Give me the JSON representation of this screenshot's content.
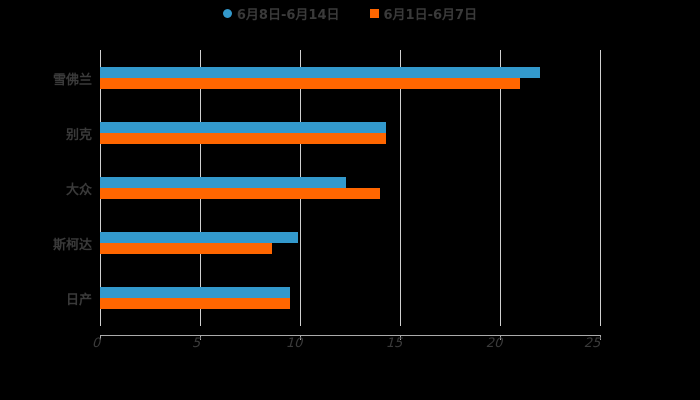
{
  "colors": {
    "series_a": "#3399cc",
    "series_b": "#ff6600",
    "background": "#000000",
    "text": "#3a3a3a",
    "grid": "#d0d0d0"
  },
  "legend": [
    {
      "label": "6月8日-6月14日",
      "shape": "circle"
    },
    {
      "label": "6月1日-6月7日",
      "shape": "square"
    }
  ],
  "axis": {
    "x_ticks": [
      "0",
      "5",
      "10",
      "15",
      "20",
      "25"
    ]
  },
  "categories": [
    "雪佛兰",
    "别克",
    "大众",
    "斯柯达",
    "日产"
  ],
  "chart_data": {
    "type": "bar",
    "orientation": "horizontal",
    "title": "",
    "xlabel": "",
    "ylabel": "",
    "categories": [
      "雪佛兰",
      "别克",
      "大众",
      "斯柯达",
      "日产"
    ],
    "series": [
      {
        "name": "6月8日-6月14日",
        "color": "#3399cc",
        "values": [
          22,
          14.3,
          12.3,
          9.9,
          9.5
        ]
      },
      {
        "name": "6月1日-6月7日",
        "color": "#ff6600",
        "values": [
          21,
          14.3,
          14,
          8.6,
          9.5
        ]
      }
    ],
    "xlim": [
      0,
      25
    ],
    "x_ticks": [
      0,
      5,
      10,
      15,
      20,
      25
    ],
    "grid": true,
    "legend_position": "top"
  }
}
